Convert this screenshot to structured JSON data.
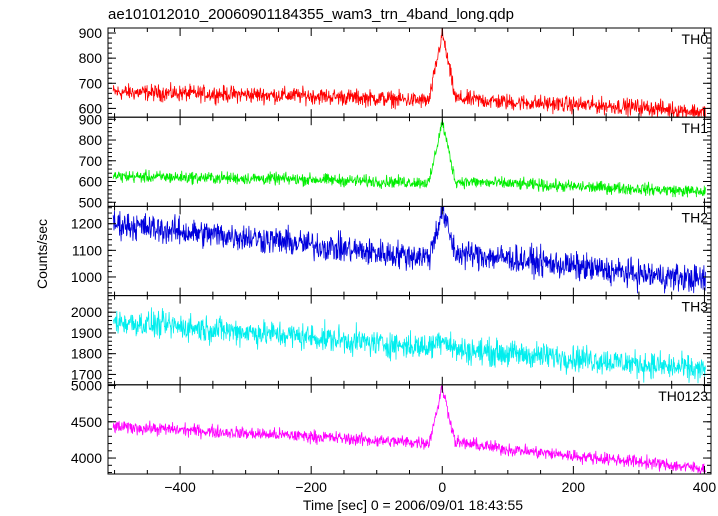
{
  "chart_data": {
    "type": "line",
    "title": "ae101012010_20060901184355_wam3_trn_4band_long.qdp",
    "xlabel": "Time [sec] 0 = 2006/09/01 18:43:55",
    "ylabel": "Counts/sec",
    "xlim": [
      -510,
      410
    ],
    "xticks": [
      -400,
      -200,
      0,
      200,
      400
    ],
    "grid": false,
    "panels": [
      {
        "name": "TH0",
        "color": "#ff0000",
        "ylim": [
          565,
          920
        ],
        "yticks": [
          600,
          700,
          800,
          900
        ],
        "x": [
          -500,
          -400,
          -300,
          -200,
          -100,
          -20,
          0,
          20,
          100,
          200,
          300,
          400
        ],
        "y": [
          665,
          660,
          655,
          650,
          640,
          630,
          900,
          640,
          625,
          615,
          605,
          585
        ],
        "noise": 28
      },
      {
        "name": "TH1",
        "color": "#00ee00",
        "ylim": [
          480,
          910
        ],
        "yticks": [
          500,
          600,
          700,
          800,
          900
        ],
        "x": [
          -500,
          -400,
          -300,
          -200,
          -100,
          -20,
          0,
          20,
          100,
          200,
          300,
          400
        ],
        "y": [
          625,
          620,
          615,
          610,
          600,
          595,
          890,
          600,
          590,
          575,
          565,
          550
        ],
        "noise": 25
      },
      {
        "name": "TH2",
        "color": "#0000dd",
        "ylim": [
          930,
          1265
        ],
        "yticks": [
          1000,
          1100,
          1200
        ],
        "x": [
          -500,
          -400,
          -300,
          -200,
          -100,
          -20,
          0,
          20,
          100,
          200,
          300,
          400
        ],
        "y": [
          1200,
          1170,
          1150,
          1120,
          1090,
          1075,
          1250,
          1090,
          1070,
          1040,
          1010,
          990
        ],
        "noise": 45
      },
      {
        "name": "TH3",
        "color": "#00eeee",
        "ylim": [
          1650,
          2080
        ],
        "yticks": [
          1700,
          1800,
          1900,
          2000
        ],
        "x": [
          -500,
          -400,
          -300,
          -200,
          -100,
          -20,
          0,
          20,
          100,
          200,
          300,
          400
        ],
        "y": [
          1955,
          1930,
          1905,
          1880,
          1850,
          1830,
          1880,
          1820,
          1800,
          1780,
          1750,
          1720
        ],
        "noise": 55
      },
      {
        "name": "TH0123",
        "color": "#ff00ff",
        "ylim": [
          3780,
          5010
        ],
        "yticks": [
          4000,
          4500,
          5000
        ],
        "x": [
          -500,
          -400,
          -300,
          -200,
          -100,
          -20,
          0,
          20,
          100,
          200,
          300,
          400
        ],
        "y": [
          4430,
          4390,
          4340,
          4300,
          4240,
          4210,
          4980,
          4220,
          4120,
          4030,
          3950,
          3850
        ],
        "noise": 75
      }
    ]
  }
}
